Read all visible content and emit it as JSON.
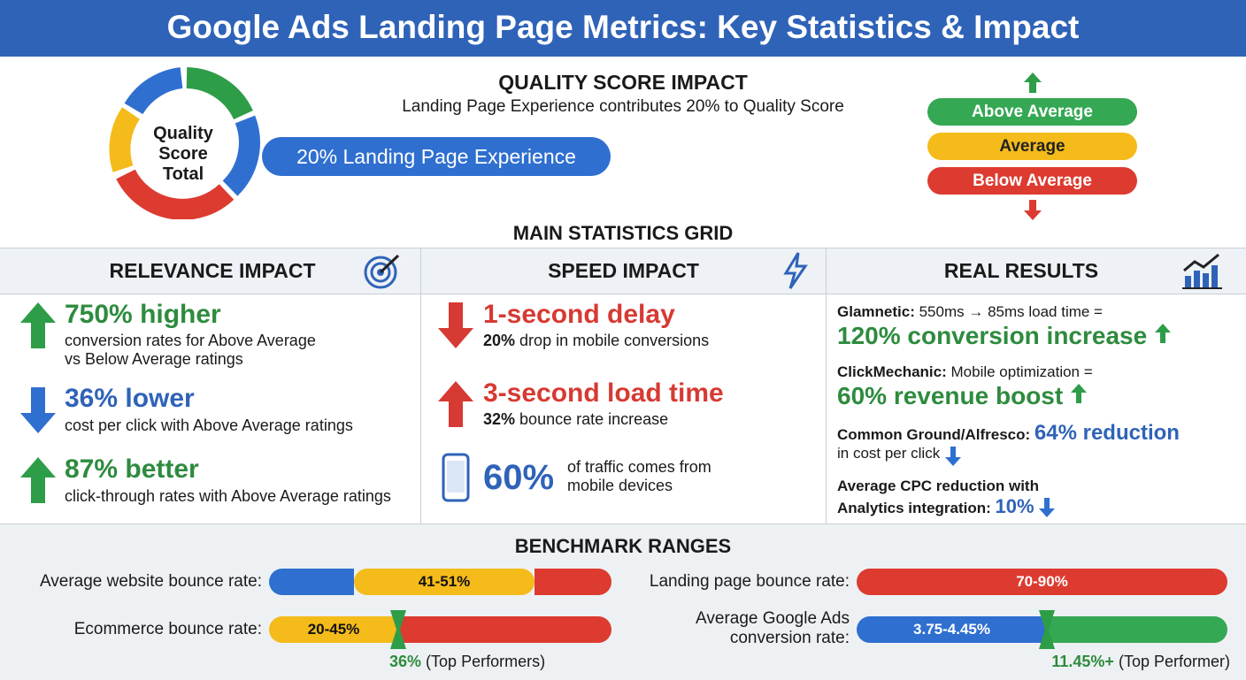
{
  "header": {
    "title": "Google Ads Landing Page Metrics: Key Statistics & Impact"
  },
  "quality_score": {
    "title": "QUALITY SCORE IMPACT",
    "subtitle": "Landing Page Experience contributes 20% to Quality Score",
    "donut_label": [
      "Quality",
      "Score",
      "Total"
    ],
    "callout": "20% Landing Page Experience",
    "ratings": [
      "Above Average",
      "Average",
      "Below Average"
    ]
  },
  "grid": {
    "title": "MAIN STATISTICS GRID",
    "relevance": {
      "title": "RELEVANCE IMPACT",
      "items": [
        {
          "headline": "750% higher",
          "text": [
            "conversion rates for Above Average",
            "vs Below Average ratings"
          ]
        },
        {
          "headline": "36% lower",
          "text": [
            "cost per click with Above Average ratings"
          ]
        },
        {
          "headline": "87% better",
          "text": [
            "click-through rates with Above Average ratings"
          ]
        }
      ]
    },
    "speed": {
      "title": "SPEED IMPACT",
      "items": [
        {
          "headline": "1-second delay",
          "bold": "20%",
          "text": "drop in mobile conversions"
        },
        {
          "headline": "3-second load time",
          "bold": "32%",
          "text": "bounce rate increase"
        },
        {
          "headline": "60%",
          "text": [
            "of traffic comes from",
            "mobile devices"
          ]
        }
      ]
    },
    "results": {
      "title": "REAL RESULTS",
      "items": [
        {
          "label": "Glamnetic:",
          "text": "550ms → 85ms load time =",
          "result": "120% conversion increase"
        },
        {
          "label": "ClickMechanic:",
          "text": "Mobile optimization =",
          "result": "60% revenue boost"
        },
        {
          "label": "Common Ground/Alfresco:",
          "result": "64% reduction",
          "text": "in cost per click"
        },
        {
          "label": [
            "Average CPC reduction with",
            "Analytics integration:"
          ],
          "result": "10%"
        }
      ]
    }
  },
  "benchmarks": {
    "title": "BENCHMARK RANGES",
    "items": [
      {
        "label": "Average website bounce rate:",
        "range": "41-51%"
      },
      {
        "label": "Ecommerce bounce rate:",
        "range": "20-45%",
        "marker": "36%",
        "marker_note": "(Top Performers)"
      },
      {
        "label": "Landing page bounce rate:",
        "range": "70-90%"
      },
      {
        "label": [
          "Average Google Ads",
          "conversion rate:"
        ],
        "range": "3.75-4.45%",
        "marker": "11.45%+",
        "marker_note": "(Top Performer)"
      }
    ]
  }
}
